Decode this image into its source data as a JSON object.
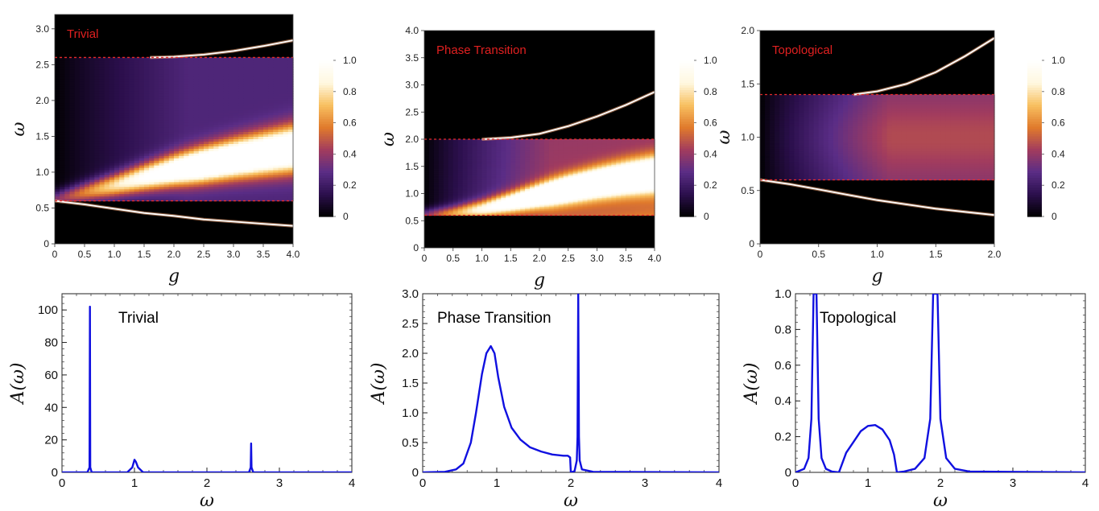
{
  "chart_data": [
    {
      "type": "heatmap",
      "label": "Trivial",
      "xlabel": "g",
      "ylabel": "ω",
      "xlim": [
        0,
        4
      ],
      "ylim": [
        0,
        3.2
      ],
      "xticks": [
        "0",
        "0.5",
        "1.0",
        "1.5",
        "2.0",
        "2.5",
        "3.0",
        "3.5",
        "4.0"
      ],
      "xtick_values": [
        0,
        0.5,
        1,
        1.5,
        2,
        2.5,
        3,
        3.5,
        4
      ],
      "yticks": [
        "0",
        "0.5",
        "1.0",
        "1.5",
        "2.0",
        "2.5",
        "3.0"
      ],
      "ytick_values": [
        0,
        0.5,
        1,
        1.5,
        2,
        2.5,
        3
      ],
      "band_edges": [
        0.6,
        2.6
      ],
      "colorbar_ticks": [
        "0",
        "0.2",
        "0.4",
        "0.6",
        "0.8",
        "1.0"
      ],
      "colorbar_values": [
        0,
        0.2,
        0.4,
        0.6,
        0.8,
        1.0
      ],
      "colormap": [
        "#000000",
        "#2b0f4c",
        "#5a2d86",
        "#a23c5e",
        "#e07a2c",
        "#f8c060",
        "#fff8e0",
        "#ffffff"
      ],
      "bound_states": [
        {
          "x": [
            0,
            0.5,
            1,
            1.5,
            2,
            2.5,
            3,
            3.5,
            4
          ],
          "y": [
            0.6,
            0.55,
            0.49,
            0.43,
            0.39,
            0.34,
            0.31,
            0.28,
            0.25
          ]
        },
        {
          "x": [
            1.6,
            2.0,
            2.5,
            3.0,
            3.5,
            4.0
          ],
          "y": [
            2.6,
            2.61,
            2.64,
            2.69,
            2.76,
            2.84
          ]
        }
      ],
      "resonance": {
        "x": [
          0,
          0.5,
          1,
          1.5,
          2,
          2.5,
          3,
          3.5,
          4
        ],
        "y": [
          0.62,
          0.72,
          0.82,
          0.93,
          1.03,
          1.11,
          1.19,
          1.26,
          1.33
        ]
      },
      "continuum_level": 0.25
    },
    {
      "type": "heatmap",
      "label": "Phase Transition",
      "xlabel": "g",
      "ylabel": "ω",
      "xlim": [
        0,
        4
      ],
      "ylim": [
        0,
        4
      ],
      "xticks": [
        "0",
        "0.5",
        "1.0",
        "1.5",
        "2.0",
        "2.5",
        "3.0",
        "3.5",
        "4.0"
      ],
      "xtick_values": [
        0,
        0.5,
        1,
        1.5,
        2,
        2.5,
        3,
        3.5,
        4
      ],
      "yticks": [
        "0",
        "0.5",
        "1.0",
        "1.5",
        "2.0",
        "2.5",
        "3.0",
        "3.5",
        "4.0"
      ],
      "ytick_values": [
        0,
        0.5,
        1,
        1.5,
        2,
        2.5,
        3,
        3.5,
        4
      ],
      "band_edges": [
        0.6,
        2.0
      ],
      "colorbar_ticks": [
        "0",
        "0.2",
        "0.4",
        "0.6",
        "0.8",
        "1.0"
      ],
      "colorbar_values": [
        0,
        0.2,
        0.4,
        0.6,
        0.8,
        1.0
      ],
      "colormap": [
        "#000000",
        "#2b0f4c",
        "#5a2d86",
        "#a23c5e",
        "#e07a2c",
        "#f8c060",
        "#fff8e0",
        "#ffffff"
      ],
      "bound_states": [
        {
          "x": [
            1.0,
            1.5,
            2.0,
            2.5,
            3.0,
            3.5,
            4.0
          ],
          "y": [
            2.0,
            2.03,
            2.1,
            2.24,
            2.42,
            2.63,
            2.87
          ]
        }
      ],
      "resonance": {
        "x": [
          0,
          0.5,
          1,
          1.5,
          2,
          2.5,
          3,
          3.5,
          4
        ],
        "y": [
          0.6,
          0.64,
          0.72,
          0.84,
          0.97,
          1.09,
          1.2,
          1.29,
          1.36
        ]
      },
      "continuum_level": 0.4
    },
    {
      "type": "heatmap",
      "label": "Topological",
      "xlabel": "g",
      "ylabel": "ω",
      "xlim": [
        0,
        2
      ],
      "ylim": [
        0,
        2
      ],
      "xticks": [
        "0",
        "0.5",
        "1.0",
        "1.5",
        "2.0"
      ],
      "xtick_values": [
        0,
        0.5,
        1,
        1.5,
        2
      ],
      "yticks": [
        "0",
        "0.5",
        "1.0",
        "1.5",
        "2.0"
      ],
      "ytick_values": [
        0,
        0.5,
        1,
        1.5,
        2
      ],
      "band_edges": [
        0.6,
        1.4
      ],
      "colorbar_ticks": [
        "0",
        "0.2",
        "0.4",
        "0.6",
        "0.8",
        "1.0"
      ],
      "colorbar_values": [
        0,
        0.2,
        0.4,
        0.6,
        0.8,
        1.0
      ],
      "colormap": [
        "#000000",
        "#2b0f4c",
        "#5a2d86",
        "#a23c5e",
        "#e07a2c",
        "#f8c060",
        "#fff8e0",
        "#ffffff"
      ],
      "bound_states": [
        {
          "x": [
            0,
            0.25,
            0.5,
            0.75,
            1.0,
            1.25,
            1.5,
            1.75,
            2.0
          ],
          "y": [
            0.6,
            0.56,
            0.51,
            0.46,
            0.41,
            0.37,
            0.33,
            0.3,
            0.27
          ]
        },
        {
          "x": [
            0.8,
            1.0,
            1.25,
            1.5,
            1.75,
            2.0
          ],
          "y": [
            1.4,
            1.43,
            1.5,
            1.61,
            1.76,
            1.93
          ]
        }
      ],
      "resonance": {
        "x": [
          0,
          0.5,
          1,
          1.5,
          2
        ],
        "y": [
          1.0,
          1.0,
          1.0,
          1.0,
          1.0
        ]
      },
      "continuum_level": 0.42
    },
    {
      "type": "line",
      "label": "Trivial",
      "xlabel": "ω",
      "ylabel": "A(ω)",
      "xlim": [
        0,
        4
      ],
      "ylim": [
        0,
        110
      ],
      "xticks": [
        "0",
        "1",
        "2",
        "3",
        "4"
      ],
      "xtick_values": [
        0,
        1,
        2,
        3,
        4
      ],
      "yticks": [
        "0",
        "20",
        "40",
        "60",
        "80",
        "100"
      ],
      "ytick_values": [
        0,
        20,
        40,
        60,
        80,
        100
      ],
      "line_color": "#1010e0",
      "x": [
        0,
        0.35,
        0.38,
        0.385,
        0.39,
        0.41,
        0.9,
        0.97,
        1.0,
        1.02,
        1.05,
        1.12,
        2.58,
        2.605,
        2.61,
        2.615,
        2.64,
        4.0
      ],
      "y": [
        0,
        0,
        3,
        102,
        3,
        0,
        0,
        3,
        7.8,
        6.5,
        3,
        0,
        0,
        3,
        17.8,
        3,
        0,
        0
      ]
    },
    {
      "type": "line",
      "label": "Phase Transition",
      "xlabel": "ω",
      "ylabel": "A(ω)",
      "xlim": [
        0,
        4
      ],
      "ylim": [
        0,
        3.0
      ],
      "xticks": [
        "0",
        "1",
        "2",
        "3",
        "4"
      ],
      "xtick_values": [
        0,
        1,
        2,
        3,
        4
      ],
      "yticks": [
        "0",
        "0.5",
        "1.0",
        "1.5",
        "2.0",
        "2.5",
        "3.0"
      ],
      "ytick_values": [
        0,
        0.5,
        1,
        1.5,
        2,
        2.5,
        3
      ],
      "line_color": "#1010e0",
      "x": [
        0,
        0.3,
        0.45,
        0.55,
        0.65,
        0.72,
        0.8,
        0.86,
        0.92,
        0.97,
        1.02,
        1.1,
        1.2,
        1.32,
        1.45,
        1.6,
        1.75,
        1.9,
        1.96,
        1.99,
        2.0,
        2.05,
        2.08,
        2.09,
        2.1,
        2.11,
        2.12,
        2.15,
        2.3,
        4.0
      ],
      "y": [
        0,
        0.01,
        0.05,
        0.15,
        0.5,
        1.0,
        1.65,
        2.0,
        2.12,
        2.0,
        1.6,
        1.1,
        0.75,
        0.55,
        0.42,
        0.35,
        0.3,
        0.28,
        0.28,
        0.25,
        0.0,
        0.02,
        0.2,
        0.6,
        3.0,
        0.6,
        0.2,
        0.05,
        0.01,
        0
      ]
    },
    {
      "type": "line",
      "label": "Topological",
      "xlabel": "ω",
      "ylabel": "A(ω)",
      "xlim": [
        0,
        4
      ],
      "ylim": [
        0,
        1.0
      ],
      "xticks": [
        "0",
        "1",
        "2",
        "3",
        "4"
      ],
      "xtick_values": [
        0,
        1,
        2,
        3,
        4
      ],
      "yticks": [
        "0",
        "0.2",
        "0.4",
        "0.6",
        "0.8",
        "1.0"
      ],
      "ytick_values": [
        0,
        0.2,
        0.4,
        0.6,
        0.8,
        1.0
      ],
      "line_color": "#1010e0",
      "x": [
        0,
        0.12,
        0.18,
        0.22,
        0.25,
        0.27,
        0.29,
        0.32,
        0.36,
        0.42,
        0.5,
        0.6,
        0.7,
        0.8,
        0.9,
        1.0,
        1.1,
        1.2,
        1.3,
        1.36,
        1.4,
        1.5,
        1.65,
        1.78,
        1.86,
        1.9,
        1.93,
        1.96,
        2.0,
        2.08,
        2.2,
        2.4,
        4.0
      ],
      "y": [
        0,
        0.02,
        0.08,
        0.3,
        1.0,
        1.0,
        1.0,
        0.3,
        0.08,
        0.02,
        0.005,
        0.0,
        0.11,
        0.17,
        0.23,
        0.26,
        0.265,
        0.24,
        0.18,
        0.1,
        0.0,
        0.005,
        0.02,
        0.08,
        0.3,
        1.0,
        1.0,
        1.0,
        0.3,
        0.08,
        0.02,
        0.005,
        0
      ]
    }
  ]
}
